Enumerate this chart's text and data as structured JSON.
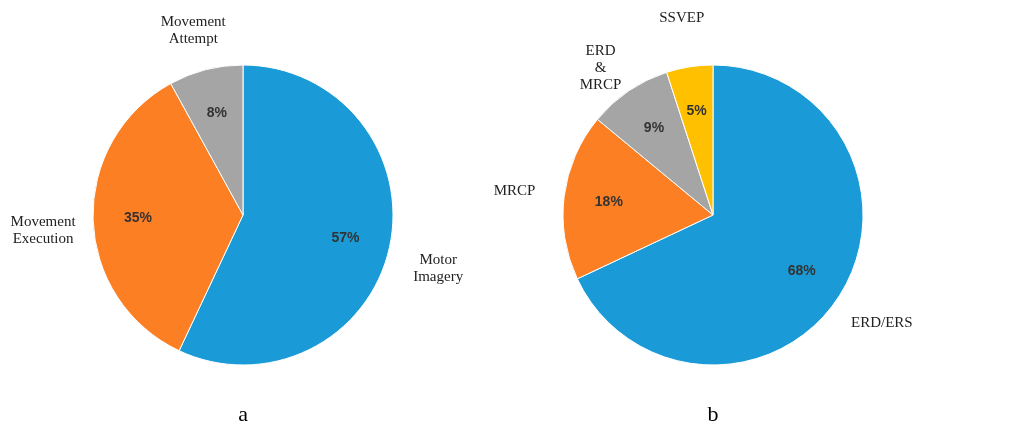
{
  "chart_data": [
    {
      "type": "pie",
      "title": "a",
      "categories": [
        "Motor Imagery",
        "Movement Execution",
        "Movement Attempt"
      ],
      "values": [
        57,
        35,
        8
      ],
      "colors": [
        "#1a9bd7",
        "#fd7f23",
        "#a5a5a5"
      ],
      "value_labels": [
        "57%",
        "35%",
        "8%"
      ],
      "legend": false
    },
    {
      "type": "pie",
      "title": "b",
      "categories": [
        "ERD/ERS",
        "MRCP",
        "ERD & MRCP",
        "SSVEP"
      ],
      "values": [
        68,
        18,
        9,
        5
      ],
      "colors": [
        "#1a9bd7",
        "#fd7f23",
        "#a5a5a5",
        "#ffc000"
      ],
      "value_labels": [
        "68%",
        "18%",
        "9%",
        "5%"
      ],
      "legend": false
    }
  ]
}
